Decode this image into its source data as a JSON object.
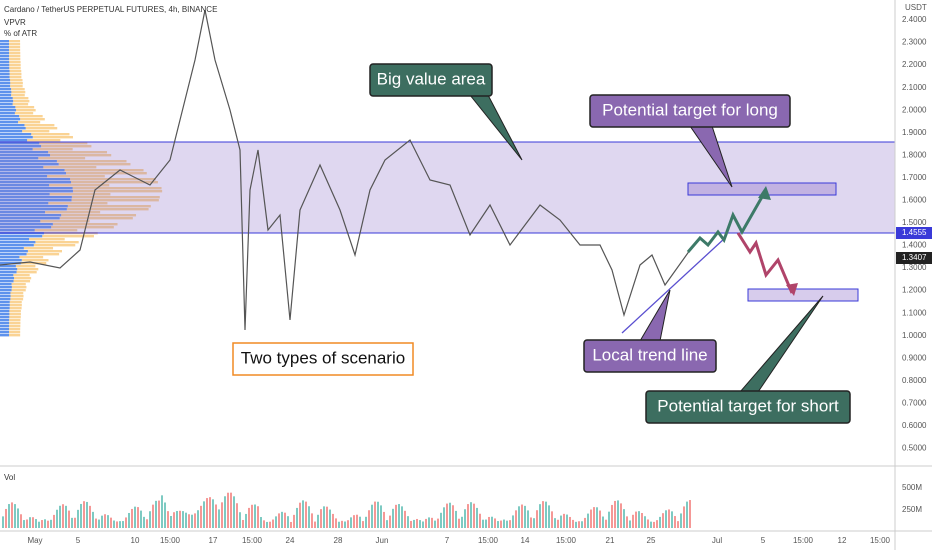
{
  "header": {
    "title": "Cardano / TetherUS PERPETUAL FUTURES, 4h, BINANCE",
    "indicators": [
      "VPVR",
      "% of ATR"
    ]
  },
  "price_axis": {
    "currency": "USDT",
    "labels": [
      "2.4000",
      "2.3000",
      "2.2000",
      "2.1000",
      "2.0000",
      "1.9000",
      "1.8000",
      "1.7000",
      "1.6000",
      "1.5000",
      "1.4000",
      "1.3000",
      "1.2000",
      "1.1000",
      "1.0000",
      "0.9000",
      "0.8000",
      "0.7000",
      "0.6000",
      "0.5000"
    ],
    "markers": [
      "1.4555",
      "1.3407"
    ]
  },
  "volume_pane": {
    "title": "Vol",
    "labels": [
      "500M",
      "250M"
    ]
  },
  "time_axis": {
    "labels": [
      "May",
      "5",
      "10",
      "15:00",
      "17",
      "15:00",
      "24",
      "28",
      "Jun",
      "7",
      "15:00",
      "14",
      "15:00",
      "21",
      "25",
      "Jul",
      "5",
      "15:00",
      "12",
      "15:00"
    ]
  },
  "annotations": {
    "value_area": "Big value area",
    "long_target": "Potential target for long",
    "scenario": "Two types of scenario",
    "trend_line": "Local trend line",
    "short_target": "Potential target for short"
  }
}
